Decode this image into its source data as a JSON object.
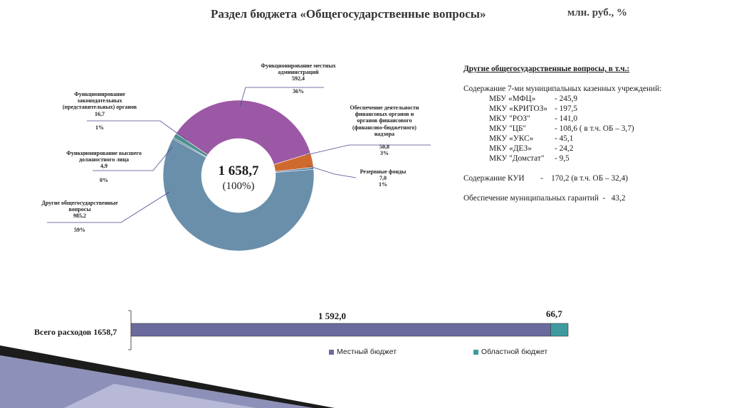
{
  "title": "Раздел бюджета «Общегосударственные вопросы»",
  "units": "млн. руб., %",
  "colors": {
    "deco_dark": "#1c1c1c",
    "deco_mid": "#8d90b8",
    "deco_light": "#c9cbe2"
  },
  "chart_data": [
    {
      "type": "pie",
      "variant": "donut",
      "center_total": "1 658,7",
      "center_pct": "(100%)",
      "slices": [
        {
          "label_lines": [
            "Функционирование местных",
            "администраций"
          ],
          "value": 592.4,
          "value_text": "592,4",
          "pct_text": "36%",
          "color": "#9b58a5"
        },
        {
          "label_lines": [
            "Обеспечение деятельности",
            "финансовых органов и",
            "органов финансового",
            "(финансово-бюджетного)",
            "надзора"
          ],
          "value": 50.8,
          "value_text": "50,8",
          "pct_text": "3%",
          "color": "#cf6a2e"
        },
        {
          "label_lines": [
            "Резервные фонды"
          ],
          "value": 7.0,
          "value_text": "7,0",
          "pct_text": "1%",
          "color": "#4f7fa8"
        },
        {
          "label_lines": [
            "Другие общегосударственные",
            "вопросы"
          ],
          "value": 985.2,
          "value_text": "985,2",
          "pct_text": "59%",
          "color": "#6a8fab"
        },
        {
          "label_lines": [
            "Функционирование высшего",
            "должностного лица"
          ],
          "value": 4.9,
          "value_text": "4,9",
          "pct_text": "0%",
          "color": "#3e6f93"
        },
        {
          "label_lines": [
            "Функционирование",
            "законодательных",
            "(представительных) органов"
          ],
          "value": 16.7,
          "value_text": "16,7",
          "pct_text": "1%",
          "color": "#4e8f8e"
        }
      ]
    },
    {
      "type": "bar",
      "orientation": "horizontal",
      "stacked": true,
      "categories": [
        "Всего расходов 1658,7"
      ],
      "series": [
        {
          "name": "Местный бюджет",
          "values": [
            1592.0
          ],
          "value_text": "1 592,0",
          "color": "#6a6a9e"
        },
        {
          "name": "Областной бюджет",
          "values": [
            66.7
          ],
          "value_text": "66,7",
          "color": "#3f9aa0"
        }
      ],
      "legend": "bottom"
    }
  ],
  "details": {
    "title": "Другие общегосударственные вопросы, в т.ч.:",
    "intro": "Содержание 7-ми муниципальных казенных учреждений:",
    "items": [
      {
        "name": "МБУ «МФЦ»",
        "value": "-  245,9"
      },
      {
        "name": "МКУ «КРИТОЗ»",
        "value": "-  197,5"
      },
      {
        "name": "МКУ \"РОЗ\"",
        "value": "-  141,0"
      },
      {
        "name": "МКУ \"ЦБ\"",
        "value": "-  108,6 ( в т.ч. ОБ – 3,7)"
      },
      {
        "name": "МКУ «УКС»",
        "value": "-    45,1"
      },
      {
        "name": "МКУ «ДЕЗ»",
        "value": "-    24,2"
      },
      {
        "name": "МКУ \"Домстат\"",
        "value": "-     9,5"
      }
    ],
    "kui": "Содержание КУИ        -    170,2 (в т.ч. ОБ – 32,4)",
    "guarantees": "Обеспечение муниципальных гарантий  -   43,2"
  }
}
